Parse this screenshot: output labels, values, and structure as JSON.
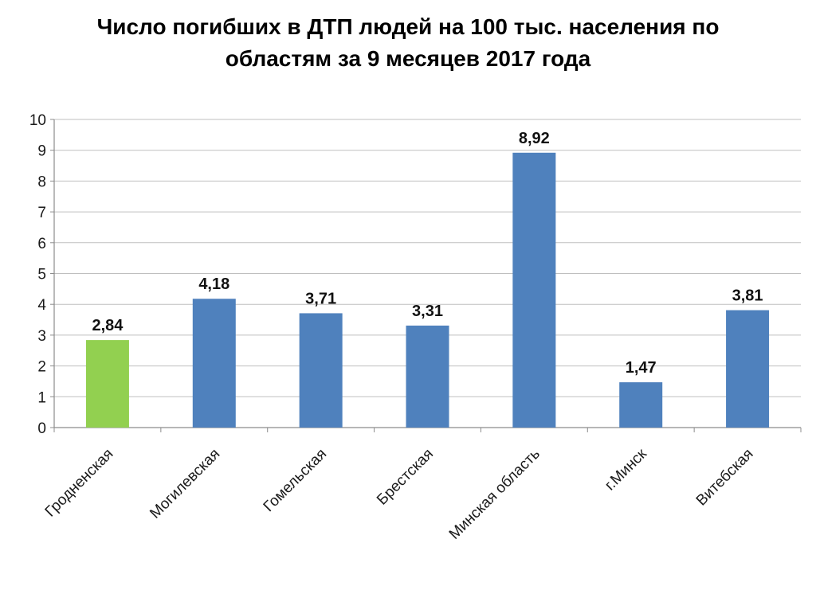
{
  "chart_data": {
    "type": "bar",
    "title_lines": [
      "Число погибших в ДТП людей на 100 тыс. населения по",
      "областям за 9 месяцев 2017 года"
    ],
    "categories": [
      "Гродненская",
      "Могилевская",
      "Гомельская",
      "Брестская",
      "Минская область",
      "г.Минск",
      "Витебская"
    ],
    "values": [
      2.84,
      4.18,
      3.71,
      3.31,
      8.92,
      1.47,
      3.81
    ],
    "data_labels": [
      "2,84",
      "4,18",
      "3,71",
      "3,31",
      "8,92",
      "1,47",
      "3,81"
    ],
    "ylim": [
      0,
      10
    ],
    "yticks": [
      "0",
      "1",
      "2",
      "3",
      "4",
      "5",
      "6",
      "7",
      "8",
      "9",
      "10"
    ],
    "grid": true,
    "legend": false,
    "colors": {
      "default_bar": "#4F81BD",
      "highlight_bar": "#92D050",
      "grid": "#BFBFBF",
      "axis": "#8C8C8C"
    },
    "highlight_category": "Гродненская"
  }
}
